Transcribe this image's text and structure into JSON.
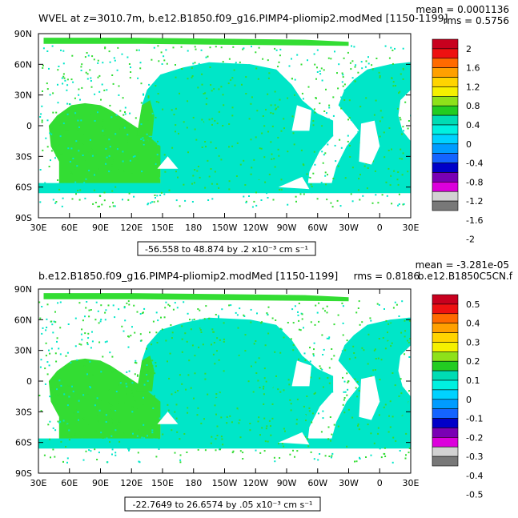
{
  "panels": [
    {
      "title": "WVEL at z=3010.7m, b.e12.B1850.f09_g16.PIMP4-pliomip2.modMed [1150-1199]",
      "mean_text": "mean = 0.0001136",
      "rms_text": "rms = 0.5756",
      "range_text": "-56.558 to 48.874 by .2 x10⁻³ cm s⁻¹",
      "colorbar_labels": [
        "2",
        "1.6",
        "1.2",
        "0.8",
        "0.4",
        "0",
        "-0.4",
        "-0.8",
        "-1.2",
        "-1.6",
        "-2"
      ]
    },
    {
      "title": "b.e12.B1850.f09_g16.PIMP4-pliomip2.modMed [1150-1199]",
      "mean_text": "mean = -3.281e-05",
      "rms_text": "rms = 0.8186",
      "overlap_text": "b.e12.B1850C5CN.f",
      "range_text": "-22.7649 to 26.6574 by .05 x10⁻³ cm s⁻¹",
      "colorbar_labels": [
        "0.5",
        "0.4",
        "0.3",
        "0.2",
        "0.1",
        "0",
        "-0.1",
        "-0.2",
        "-0.3",
        "-0.4",
        "-0.5"
      ]
    }
  ],
  "lat_labels": [
    "90N",
    "60N",
    "30N",
    "0",
    "30S",
    "60S",
    "90S"
  ],
  "lon_labels": [
    "30E",
    "60E",
    "90E",
    "120E",
    "150E",
    "180",
    "150W",
    "120W",
    "90W",
    "60W",
    "30W",
    "0",
    "30E"
  ],
  "colors": {
    "ocean_main": "#00e6c8",
    "ocean_green": "#33dd33",
    "land": "#ffffff",
    "colorbar": [
      "#c8001e",
      "#ee1111",
      "#ff6a00",
      "#ffa000",
      "#ffd400",
      "#f5f000",
      "#8ee11a",
      "#22cc22",
      "#00dcb4",
      "#00f0e0",
      "#00d2ff",
      "#009cff",
      "#1464ff",
      "#0000c8",
      "#7a00b4",
      "#dc00dc",
      "#d2d2d2",
      "#787878"
    ]
  }
}
